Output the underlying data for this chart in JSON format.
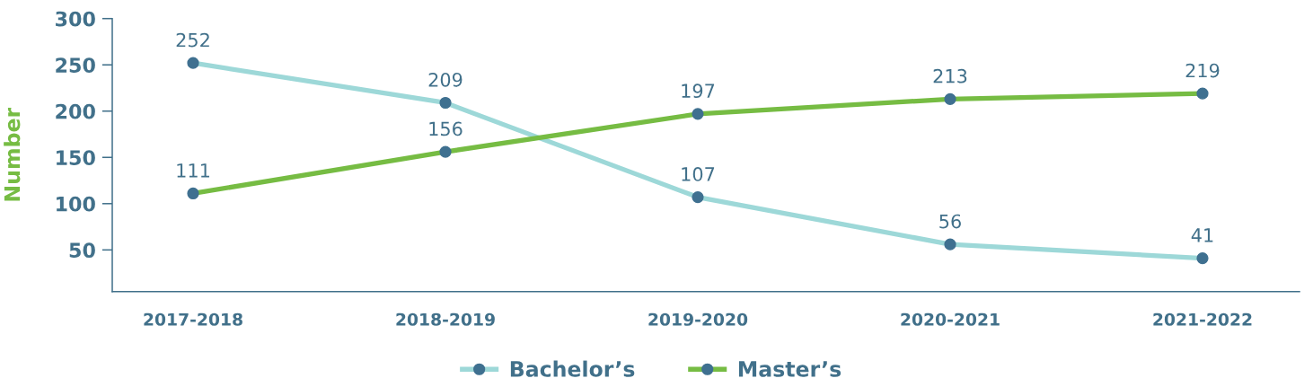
{
  "chart_data": {
    "type": "line",
    "ylabel": "Number",
    "categories": [
      "2017-2018",
      "2018-2019",
      "2019-2020",
      "2020-2021",
      "2021-2022"
    ],
    "series": [
      {
        "name": "Bachelor’s",
        "color": "#9dd8d8",
        "values": [
          252,
          209,
          107,
          56,
          41
        ]
      },
      {
        "name": "Master’s",
        "color": "#76bc43",
        "values": [
          111,
          156,
          197,
          213,
          219
        ]
      }
    ],
    "ylim": [
      5,
      300
    ],
    "yticks": [
      50,
      100,
      150,
      200,
      250,
      300
    ],
    "data_labels": true,
    "legend": "bottom",
    "grid": false,
    "marker": "circle",
    "line_style": "solid"
  }
}
